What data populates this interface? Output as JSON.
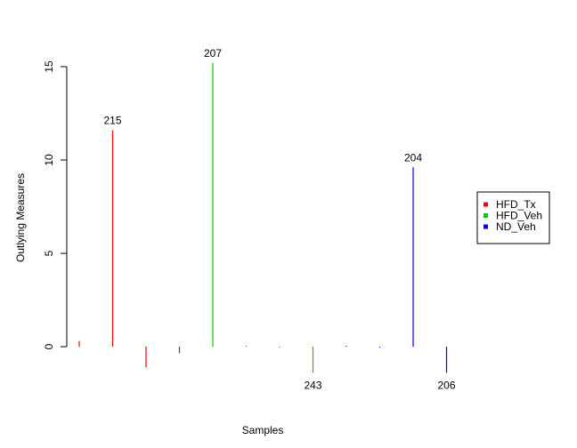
{
  "chart_data": {
    "type": "bar",
    "title": "",
    "xlabel": "Samples",
    "ylabel": "Outlying Measures",
    "ylim": [
      -2,
      16
    ],
    "yticks": [
      0,
      5,
      10,
      15
    ],
    "ytick_labels": [
      "0",
      "5",
      "10",
      "15"
    ],
    "grid": false,
    "legend_position": "right",
    "series_colors": {
      "HFD_Tx": "#ff0000",
      "HFD_Veh": "#00cd00",
      "ND_Veh": "#0000ff"
    },
    "legend": [
      {
        "label": "HFD_Tx",
        "color": "#ff0000"
      },
      {
        "label": "HFD_Veh",
        "color": "#00cd00"
      },
      {
        "label": "ND_Veh",
        "color": "#0000ff"
      }
    ],
    "bars": [
      {
        "index": 1,
        "group": "HFD_Tx",
        "value": 0.3,
        "label": ""
      },
      {
        "index": 2,
        "group": "HFD_Tx",
        "value": 11.6,
        "label": "215"
      },
      {
        "index": 3,
        "group": "HFD_Tx",
        "value": -1.1,
        "label": ""
      },
      {
        "index": 4,
        "group": "HFD_Tx",
        "value": -0.35,
        "label": ""
      },
      {
        "index": 5,
        "group": "HFD_Veh",
        "value": 15.2,
        "label": "207"
      },
      {
        "index": 6,
        "group": "HFD_Veh",
        "value": 0.05,
        "label": ""
      },
      {
        "index": 7,
        "group": "HFD_Veh",
        "value": -0.05,
        "label": ""
      },
      {
        "index": 8,
        "group": "HFD_Veh",
        "value": -1.4,
        "label": "243"
      },
      {
        "index": 9,
        "group": "ND_Veh",
        "value": 0.05,
        "label": ""
      },
      {
        "index": 10,
        "group": "ND_Veh",
        "value": -0.05,
        "label": ""
      },
      {
        "index": 11,
        "group": "ND_Veh",
        "value": 9.6,
        "label": "204"
      },
      {
        "index": 12,
        "group": "ND_Veh",
        "value": -1.4,
        "label": "206"
      }
    ]
  }
}
